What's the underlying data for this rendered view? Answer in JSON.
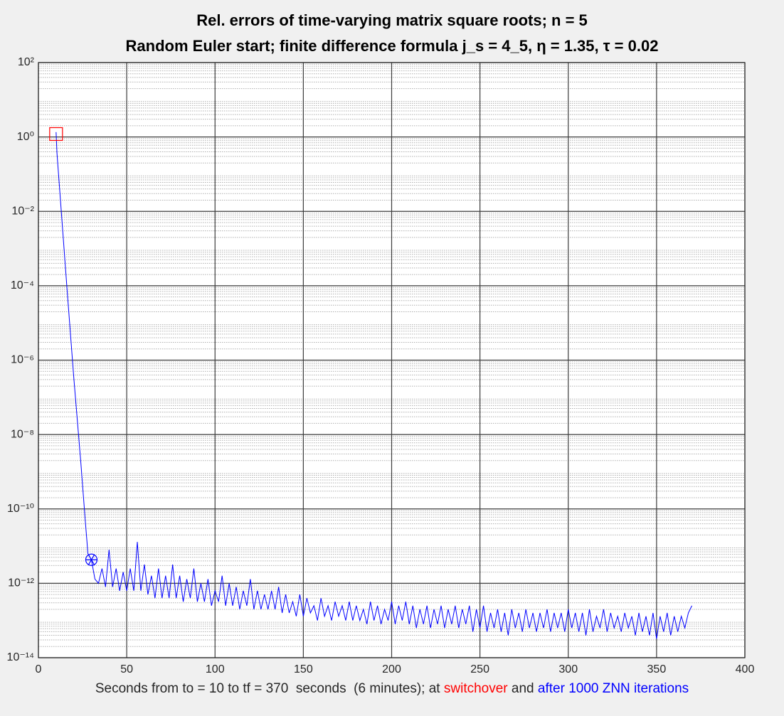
{
  "chart_data": {
    "type": "line",
    "title": "Rel. errors of time-varying matrix square roots; n = 5",
    "subtitle": "Random Euler start; finite difference formula  j_s = 4_5, η = 1.35, τ = 0.02",
    "xlabel": [
      {
        "text": "Seconds from to = 10 to tf = 370  seconds  (6 minutes); at ",
        "color": "#262626"
      },
      {
        "text": "switchover",
        "color": "#ff0000"
      },
      {
        "text": " and ",
        "color": "#262626"
      },
      {
        "text": "after 1000 ZNN iterations",
        "color": "#0000ff"
      }
    ],
    "log_y": true,
    "grid": true,
    "minor_grid": true,
    "xlim": [
      0,
      400
    ],
    "xticks": [
      0,
      50,
      100,
      150,
      200,
      250,
      300,
      350,
      400
    ],
    "ylim": [
      1e-14,
      100
    ],
    "yticks": [
      {
        "value": 1e-14,
        "label": "10⁻¹⁴"
      },
      {
        "value": 1e-12,
        "label": "10⁻¹²"
      },
      {
        "value": 1e-10,
        "label": "10⁻¹⁰"
      },
      {
        "value": 1e-08,
        "label": "10⁻⁸"
      },
      {
        "value": 1e-06,
        "label": "10⁻⁶"
      },
      {
        "value": 0.0001,
        "label": "10⁻⁴"
      },
      {
        "value": 0.01,
        "label": "10⁻²"
      },
      {
        "value": 1,
        "label": "10⁰"
      },
      {
        "value": 100,
        "label": "10²"
      }
    ],
    "series": [
      {
        "color": "#0000ff",
        "x": [
          10,
          10.5,
          16,
          20,
          24,
          26.5,
          27.5,
          28,
          30,
          32,
          34,
          36,
          38,
          40,
          42,
          44,
          46,
          48,
          50,
          52,
          54,
          56,
          58,
          60,
          62,
          64,
          66,
          68,
          70,
          72,
          74,
          76,
          78,
          80,
          82,
          84,
          86,
          88,
          90,
          92,
          94,
          96,
          98,
          100,
          102,
          104,
          106,
          108,
          110,
          112,
          114,
          116,
          118,
          120,
          122,
          124,
          126,
          128,
          130,
          132,
          134,
          136,
          138,
          140,
          142,
          144,
          146,
          148,
          150,
          152,
          154,
          156,
          158,
          160,
          162,
          164,
          166,
          168,
          170,
          172,
          174,
          176,
          178,
          180,
          182,
          184,
          186,
          188,
          190,
          192,
          194,
          196,
          198,
          200,
          202,
          204,
          206,
          208,
          210,
          212,
          214,
          216,
          218,
          220,
          222,
          224,
          226,
          228,
          230,
          232,
          234,
          236,
          238,
          240,
          242,
          244,
          246,
          248,
          250,
          252,
          254,
          256,
          258,
          260,
          262,
          264,
          266,
          268,
          270,
          272,
          274,
          276,
          278,
          280,
          282,
          284,
          286,
          288,
          290,
          292,
          294,
          296,
          298,
          300,
          302,
          304,
          306,
          308,
          310,
          312,
          314,
          316,
          318,
          320,
          322,
          324,
          326,
          328,
          330,
          332,
          334,
          336,
          338,
          340,
          342,
          344,
          346,
          348,
          350,
          352,
          354,
          356,
          358,
          360,
          362,
          364,
          366,
          368,
          370
        ],
        "values": [
          1.35,
          0.37,
          0.00011,
          3.5e-07,
          1.8e-09,
          5e-11,
          1.3e-11,
          6.3e-12,
          4.3e-12,
          1.3e-12,
          1e-12,
          2.5e-12,
          8e-13,
          8e-12,
          8e-13,
          2.5e-12,
          6.3e-13,
          2e-12,
          6.3e-13,
          2.5e-12,
          6.3e-13,
          1.3e-11,
          6.3e-13,
          3.2e-12,
          5e-13,
          1.6e-12,
          4e-13,
          2.5e-12,
          4e-13,
          1.6e-12,
          4e-13,
          3.2e-12,
          4e-13,
          1.6e-12,
          3.2e-13,
          1.3e-12,
          4e-13,
          2.5e-12,
          3.2e-13,
          1e-12,
          3.2e-13,
          1.3e-12,
          2.5e-13,
          6.3e-13,
          3.2e-13,
          1.6e-12,
          2.5e-13,
          1e-12,
          2.5e-13,
          8e-13,
          2e-13,
          6.3e-13,
          2.5e-13,
          1.3e-12,
          2e-13,
          6.3e-13,
          2e-13,
          5e-13,
          2e-13,
          6.3e-13,
          2e-13,
          8e-13,
          1.6e-13,
          5e-13,
          1.6e-13,
          3.2e-13,
          1.3e-13,
          5e-13,
          1.3e-13,
          4e-13,
          1.6e-13,
          2.5e-13,
          1e-13,
          4e-13,
          1.3e-13,
          2.5e-13,
          1e-13,
          3.2e-13,
          1.3e-13,
          2.5e-13,
          1e-13,
          3.2e-13,
          1e-13,
          2.5e-13,
          1e-13,
          2e-13,
          8e-14,
          3.2e-13,
          1e-13,
          2.5e-13,
          8e-14,
          2e-13,
          1e-13,
          3.2e-13,
          8e-14,
          2.5e-13,
          1e-13,
          3.2e-13,
          8e-14,
          2.5e-13,
          6.3e-14,
          2e-13,
          8e-14,
          2.5e-13,
          6.3e-14,
          2e-13,
          8e-14,
          2.5e-13,
          6.3e-14,
          2e-13,
          8e-14,
          2.5e-13,
          6.3e-14,
          2e-13,
          8e-14,
          2.5e-13,
          5e-14,
          2e-13,
          6.3e-14,
          2.5e-13,
          5e-14,
          1.6e-13,
          6.3e-14,
          2e-13,
          5e-14,
          1.6e-13,
          4e-14,
          2e-13,
          6.3e-14,
          1.6e-13,
          5e-14,
          2e-13,
          6.3e-14,
          1.6e-13,
          5e-14,
          1.6e-13,
          6.3e-14,
          2e-13,
          5e-14,
          1.6e-13,
          6.3e-14,
          1.6e-13,
          5e-14,
          2e-13,
          6.3e-14,
          1.6e-13,
          5e-14,
          1.6e-13,
          4e-14,
          2e-13,
          5e-14,
          1.3e-13,
          6.3e-14,
          2e-13,
          5e-14,
          1.6e-13,
          6.3e-14,
          1.3e-13,
          5e-14,
          1.6e-13,
          6.3e-14,
          1.3e-13,
          4e-14,
          1.6e-13,
          5e-14,
          1.3e-13,
          4e-14,
          1.6e-13,
          3.2e-14,
          1.3e-13,
          5e-14,
          1.6e-13,
          4e-14,
          1.3e-13,
          5e-14,
          1.3e-13,
          6.3e-14,
          1.6e-13,
          2.5e-13
        ]
      }
    ],
    "markers": [
      {
        "x": 10,
        "y": 1.2,
        "color": "#ff0000",
        "shape": "square"
      },
      {
        "x": 30,
        "y": 4.3e-12,
        "color": "#0000ff",
        "shape": "circle-asterisk"
      }
    ]
  }
}
